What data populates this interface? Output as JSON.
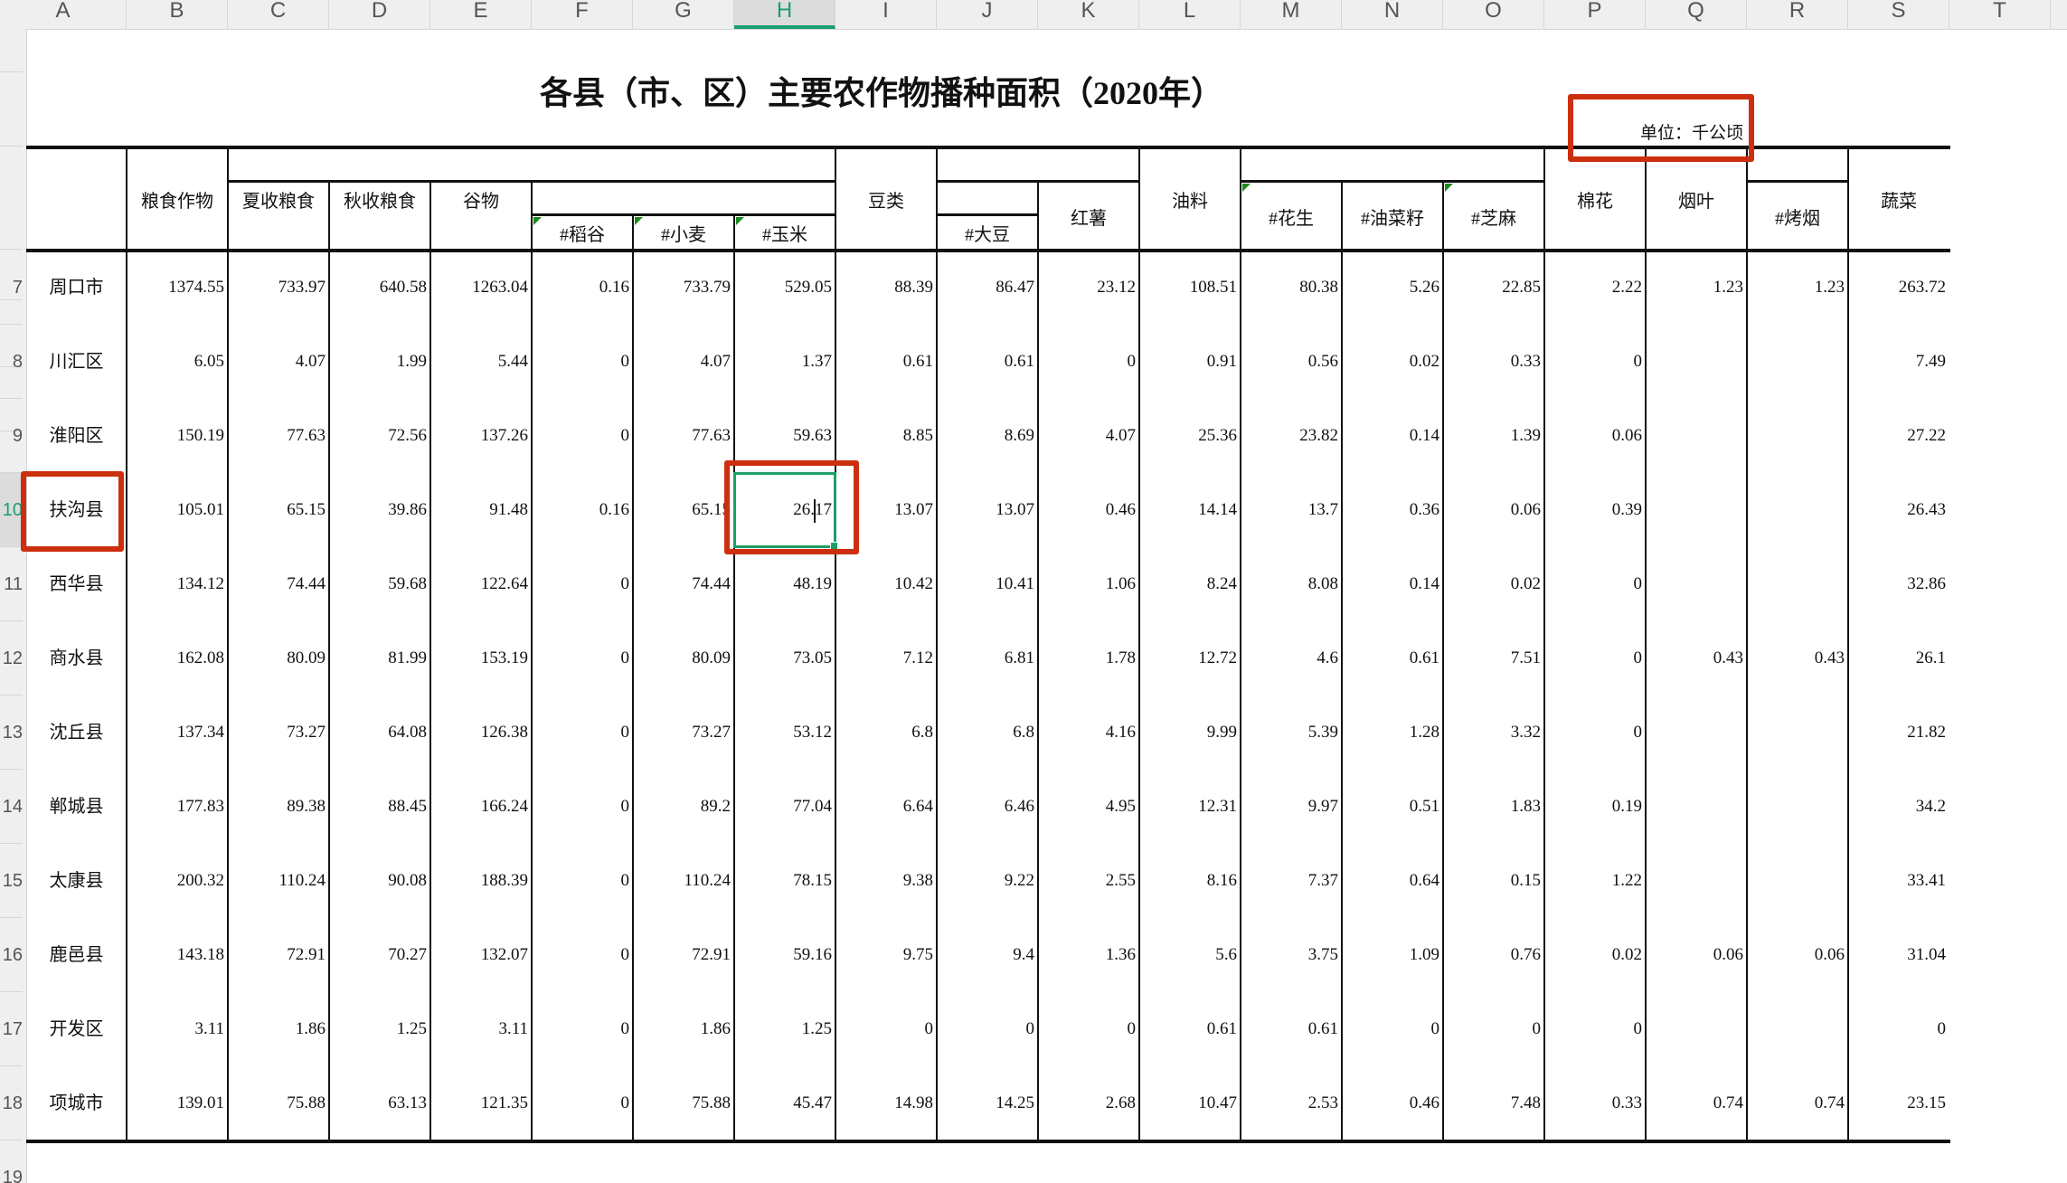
{
  "sheet": {
    "columns": [
      "A",
      "B",
      "C",
      "D",
      "E",
      "F",
      "G",
      "H",
      "I",
      "J",
      "K",
      "L",
      "M",
      "N",
      "O",
      "P",
      "Q",
      "R",
      "S",
      "T"
    ],
    "selected_column": "H",
    "row_numbers": [
      "",
      "",
      "",
      "",
      "",
      "",
      "7",
      "8",
      "9",
      "10",
      "11",
      "12",
      "13",
      "14",
      "15",
      "16",
      "17",
      "18",
      "19"
    ],
    "selected_row": "10",
    "accent_color": "#1a9e6e",
    "highlight_color": "#cc2f0d"
  },
  "table": {
    "title": "各县（市、区）主要农作物播种面积（2020年）",
    "unit": "单位：千公顷",
    "headers": {
      "grain": "粮食作物",
      "summer_grain": "夏收粮食",
      "autumn_grain": "秋收粮食",
      "cereal": "谷物",
      "rice": "#稻谷",
      "wheat": "#小麦",
      "corn": "#玉米",
      "beans": "豆类",
      "soybean": "#大豆",
      "sweet_potato": "红薯",
      "oil_crops": "油料",
      "peanut": "#花生",
      "rapeseed": "#油菜籽",
      "sesame": "#芝麻",
      "cotton": "棉花",
      "tobacco": "烟叶",
      "flue_tobacco": "#烤烟",
      "vegetables": "蔬菜"
    },
    "rows": [
      {
        "name": "周口市",
        "values": [
          "1374.55",
          "733.97",
          "640.58",
          "1263.04",
          "0.16",
          "733.79",
          "529.05",
          "88.39",
          "86.47",
          "23.12",
          "108.51",
          "80.38",
          "5.26",
          "22.85",
          "2.22",
          "1.23",
          "1.23",
          "263.72"
        ]
      },
      {
        "name": "川汇区",
        "values": [
          "6.05",
          "4.07",
          "1.99",
          "5.44",
          "0",
          "4.07",
          "1.37",
          "0.61",
          "0.61",
          "0",
          "0.91",
          "0.56",
          "0.02",
          "0.33",
          "0",
          "",
          "",
          "7.49"
        ]
      },
      {
        "name": "淮阳区",
        "values": [
          "150.19",
          "77.63",
          "72.56",
          "137.26",
          "0",
          "77.63",
          "59.63",
          "8.85",
          "8.69",
          "4.07",
          "25.36",
          "23.82",
          "0.14",
          "1.39",
          "0.06",
          "",
          "",
          "27.22"
        ]
      },
      {
        "name": "扶沟县",
        "values": [
          "105.01",
          "65.15",
          "39.86",
          "91.48",
          "0.16",
          "65.15",
          "26.17",
          "13.07",
          "13.07",
          "0.46",
          "14.14",
          "13.7",
          "0.36",
          "0.06",
          "0.39",
          "",
          "",
          "26.43"
        ]
      },
      {
        "name": "西华县",
        "values": [
          "134.12",
          "74.44",
          "59.68",
          "122.64",
          "0",
          "74.44",
          "48.19",
          "10.42",
          "10.41",
          "1.06",
          "8.24",
          "8.08",
          "0.14",
          "0.02",
          "0",
          "",
          "",
          "32.86"
        ]
      },
      {
        "name": "商水县",
        "values": [
          "162.08",
          "80.09",
          "81.99",
          "153.19",
          "0",
          "80.09",
          "73.05",
          "7.12",
          "6.81",
          "1.78",
          "12.72",
          "4.6",
          "0.61",
          "7.51",
          "0",
          "0.43",
          "0.43",
          "26.1"
        ]
      },
      {
        "name": "沈丘县",
        "values": [
          "137.34",
          "73.27",
          "64.08",
          "126.38",
          "0",
          "73.27",
          "53.12",
          "6.8",
          "6.8",
          "4.16",
          "9.99",
          "5.39",
          "1.28",
          "3.32",
          "0",
          "",
          "",
          "21.82"
        ]
      },
      {
        "name": "郸城县",
        "values": [
          "177.83",
          "89.38",
          "88.45",
          "166.24",
          "0",
          "89.2",
          "77.04",
          "6.64",
          "6.46",
          "4.95",
          "12.31",
          "9.97",
          "0.51",
          "1.83",
          "0.19",
          "",
          "",
          "34.2"
        ]
      },
      {
        "name": "太康县",
        "values": [
          "200.32",
          "110.24",
          "90.08",
          "188.39",
          "0",
          "110.24",
          "78.15",
          "9.38",
          "9.22",
          "2.55",
          "8.16",
          "7.37",
          "0.64",
          "0.15",
          "1.22",
          "",
          "",
          "33.41"
        ]
      },
      {
        "name": "鹿邑县",
        "values": [
          "143.18",
          "72.91",
          "70.27",
          "132.07",
          "0",
          "72.91",
          "59.16",
          "9.75",
          "9.4",
          "1.36",
          "5.6",
          "3.75",
          "1.09",
          "0.76",
          "0.02",
          "0.06",
          "0.06",
          "31.04"
        ]
      },
      {
        "name": "开发区",
        "values": [
          "3.11",
          "1.86",
          "1.25",
          "3.11",
          "0",
          "1.86",
          "1.25",
          "0",
          "0",
          "0",
          "0.61",
          "0.61",
          "0",
          "0",
          "0",
          "",
          "",
          "0"
        ]
      },
      {
        "name": "项城市",
        "values": [
          "139.01",
          "75.88",
          "63.13",
          "121.35",
          "0",
          "75.88",
          "45.47",
          "14.98",
          "14.25",
          "2.68",
          "10.47",
          "2.53",
          "0.46",
          "7.48",
          "0.33",
          "0.74",
          "0.74",
          "23.15"
        ]
      }
    ]
  }
}
